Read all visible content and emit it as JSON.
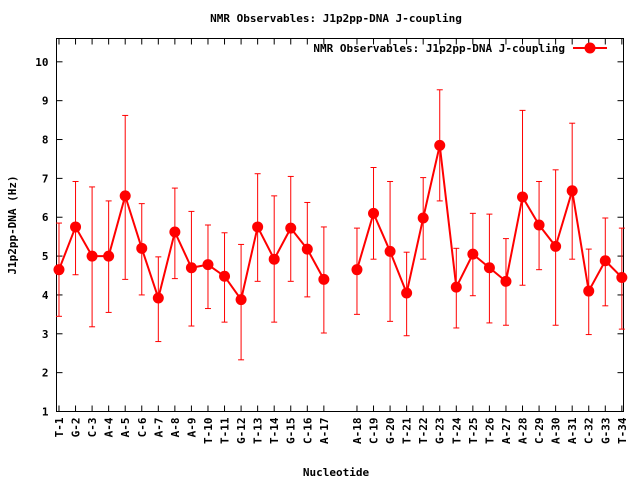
{
  "chart_data": {
    "type": "line",
    "title": "NMR Observables: J1p2pp-DNA J-coupling",
    "xlabel": "Nucleotide",
    "ylabel": "J1p2pp-DNA (Hz)",
    "ylim": [
      1,
      10.6
    ],
    "yticks": [
      1,
      2,
      3,
      4,
      5,
      6,
      7,
      8,
      9,
      10
    ],
    "legend_position": "top-right",
    "grid": false,
    "series": [
      {
        "name": "NMR Observables: J1p2pp-DNA J-coupling",
        "color": "#ff0000",
        "segments": [
          {
            "x": [
              1,
              2,
              3,
              4,
              5,
              6,
              7,
              8,
              9,
              10,
              11,
              12,
              13,
              14,
              15,
              16,
              17
            ],
            "labels": [
              "T-1",
              "G-2",
              "C-3",
              "A-4",
              "A-5",
              "C-6",
              "A-7",
              "A-8",
              "A-9",
              "T-10",
              "T-11",
              "G-12",
              "T-13",
              "T-14",
              "G-15",
              "C-16",
              "A-17"
            ],
            "values": [
              4.65,
              5.75,
              5.0,
              5.0,
              6.55,
              5.2,
              3.92,
              5.62,
              4.7,
              4.78,
              4.48,
              3.88,
              5.75,
              4.92,
              5.72,
              5.18,
              4.4
            ],
            "err_low": [
              3.45,
              4.52,
              3.18,
              3.55,
              4.4,
              4.0,
              2.8,
              4.42,
              3.2,
              3.65,
              3.3,
              2.33,
              4.35,
              3.3,
              4.35,
              3.95,
              3.02
            ],
            "err_high": [
              5.85,
              6.92,
              6.78,
              6.42,
              8.62,
              6.35,
              4.98,
              6.75,
              6.15,
              5.8,
              5.6,
              5.3,
              7.12,
              6.55,
              7.05,
              6.38,
              5.75
            ]
          },
          {
            "x": [
              19,
              20,
              21,
              22,
              23,
              24,
              25,
              26,
              27,
              28,
              29,
              30,
              31,
              32,
              33,
              34,
              35
            ],
            "labels": [
              "A-18",
              "C-19",
              "G-20",
              "T-21",
              "T-22",
              "G-23",
              "T-24",
              "T-25",
              "T-26",
              "A-27",
              "A-28",
              "C-29",
              "A-30",
              "A-31",
              "C-32",
              "G-33",
              "T-34"
            ],
            "values": [
              4.65,
              6.1,
              5.12,
              4.05,
              5.98,
              7.85,
              4.2,
              5.05,
              4.7,
              4.35,
              6.52,
              5.8,
              5.25,
              6.68,
              4.1,
              4.88,
              4.45
            ],
            "err_low": [
              3.5,
              4.92,
              3.32,
              2.95,
              4.92,
              6.42,
              3.15,
              3.98,
              3.28,
              3.22,
              4.25,
              4.65,
              3.22,
              4.92,
              2.98,
              3.72,
              3.12
            ],
            "err_high": [
              5.72,
              7.28,
              6.92,
              5.1,
              7.02,
              9.28,
              5.2,
              6.1,
              6.08,
              5.45,
              8.75,
              6.92,
              7.22,
              8.42,
              5.18,
              5.98,
              5.72
            ]
          }
        ]
      }
    ]
  }
}
